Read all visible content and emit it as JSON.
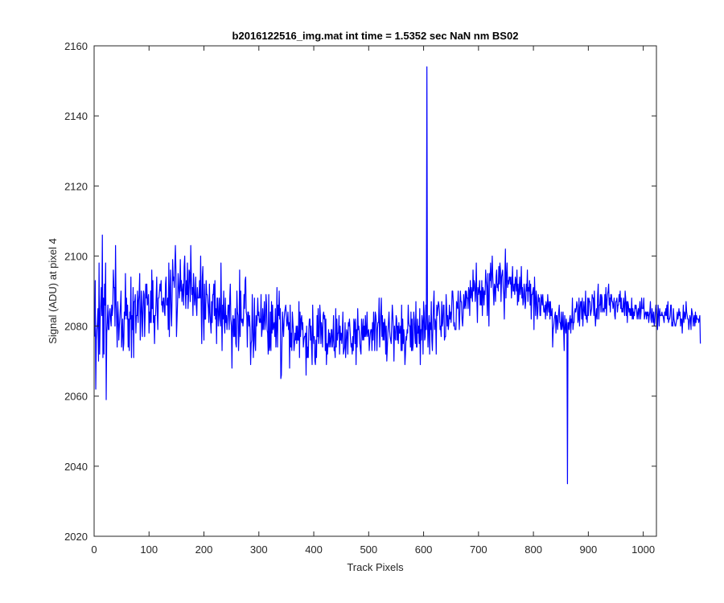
{
  "chart_data": {
    "type": "line",
    "title": "b2016122516_img.mat int time = 1.5352 sec  NaN nm BS02",
    "xlabel": "Track Pixels",
    "ylabel": "Signal (ADU) at pixel 4",
    "xlim": [
      0,
      1024
    ],
    "ylim": [
      2020,
      2160
    ],
    "xticks": [
      0,
      100,
      200,
      300,
      400,
      500,
      600,
      700,
      800,
      900,
      1000
    ],
    "yticks": [
      2020,
      2040,
      2060,
      2080,
      2100,
      2120,
      2140,
      2160
    ],
    "grid": false,
    "line_color": "#0000ff",
    "series": [
      {
        "x_start": 1,
        "x_step": 1,
        "values": [
          2077,
          2093,
          2062,
          2076,
          2079,
          2081,
          2085,
          2070,
          2098,
          2072,
          2082,
          2086,
          2091,
          2083,
          2106,
          2071,
          2088,
          2072,
          2092,
          2086,
          2098,
          2059,
          2078,
          2081,
          2086,
          2079,
          2079,
          2084,
          2085,
          2082,
          2080,
          2086,
          2083,
          2085,
          2096,
          2091,
          2091,
          2080,
          2103,
          2087,
          2082,
          2074,
          2087,
          2083,
          2076,
          2080,
          2083,
          2086,
          2090,
          2074,
          2078,
          2082,
          2073,
          2075,
          2084,
          2082,
          2095,
          2083,
          2088,
          2082,
          2086,
          2074,
          2082,
          2073,
          2084,
          2082,
          2094,
          2071,
          2083,
          2079,
          2091,
          2071,
          2087,
          2087,
          2089,
          2078,
          2083,
          2083,
          2090,
          2081,
          2087,
          2089,
          2095,
          2076,
          2081,
          2090,
          2085,
          2077,
          2084,
          2090,
          2089,
          2077,
          2084,
          2092,
          2088,
          2092,
          2086,
          2087,
          2089,
          2078,
          2084,
          2081,
          2090,
          2081,
          2096,
          2085,
          2093,
          2081,
          2083,
          2075,
          2083,
          2083,
          2088,
          2094,
          2084,
          2079,
          2088,
          2088,
          2090,
          2092,
          2090,
          2093,
          2086,
          2087,
          2084,
          2088,
          2088,
          2084,
          2083,
          2092,
          2094,
          2086,
          2086,
          2088,
          2079,
          2098,
          2077,
          2090,
          2096,
          2085,
          2080,
          2088,
          2099,
          2093,
          2094,
          2091,
          2097,
          2103,
          2096,
          2077,
          2082,
          2087,
          2095,
          2092,
          2088,
          2091,
          2099,
          2090,
          2093,
          2087,
          2090,
          2092,
          2086,
          2097,
          2100,
          2090,
          2085,
          2093,
          2089,
          2098,
          2085,
          2089,
          2096,
          2095,
          2087,
          2103,
          2094,
          2089,
          2091,
          2083,
          2095,
          2091,
          2086,
          2088,
          2094,
          2086,
          2083,
          2091,
          2088,
          2088,
          2088,
          2093,
          2088,
          2100,
          2085,
          2075,
          2094,
          2097,
          2082,
          2076,
          2092,
          2082,
          2082,
          2093,
          2089,
          2089,
          2087,
          2085,
          2081,
          2092,
          2084,
          2081,
          2078,
          2087,
          2081,
          2089,
          2089,
          2092,
          2083,
          2093,
          2082,
          2085,
          2075,
          2088,
          2088,
          2080,
          2083,
          2088,
          2082,
          2080,
          2098,
          2084,
          2073,
          2086,
          2082,
          2090,
          2081,
          2078,
          2088,
          2081,
          2083,
          2079,
          2082,
          2086,
          2086,
          2079,
          2088,
          2092,
          2082,
          2080,
          2068,
          2081,
          2083,
          2077,
          2082,
          2077,
          2085,
          2075,
          2074,
          2090,
          2084,
          2083,
          2073,
          2078,
          2096,
          2077,
          2090,
          2082,
          2081,
          2082,
          2080,
          2082,
          2089,
          2085,
          2093,
          2094,
          2084,
          2083,
          2074,
          2084,
          2084,
          2080,
          2083,
          2079,
          2069,
          2075,
          2076,
          2089,
          2080,
          2071,
          2077,
          2088,
          2075,
          2073,
          2083,
          2080,
          2082,
          2088,
          2083,
          2084,
          2081,
          2082,
          2081,
          2089,
          2077,
          2079,
          2085,
          2079,
          2082,
          2087,
          2079,
          2081,
          2089,
          2086,
          2079,
          2078,
          2072,
          2089,
          2073,
          2074,
          2084,
          2073,
          2087,
          2078,
          2086,
          2079,
          2080,
          2081,
          2077,
          2085,
          2074,
          2079,
          2091,
          2074,
          2086,
          2083,
          2090,
          2082,
          2085,
          2065,
          2066,
          2075,
          2084,
          2080,
          2077,
          2082,
          2084,
          2085,
          2086,
          2083,
          2080,
          2081,
          2084,
          2079,
          2081,
          2068,
          2086,
          2074,
          2078,
          2073,
          2084,
          2081,
          2078,
          2073,
          2075,
          2078,
          2076,
          2080,
          2075,
          2080,
          2076,
          2076,
          2087,
          2071,
          2084,
          2077,
          2082,
          2083,
          2079,
          2081,
          2074,
          2076,
          2077,
          2077,
          2078,
          2066,
          2080,
          2071,
          2074,
          2071,
          2079,
          2082,
          2082,
          2076,
          2080,
          2074,
          2069,
          2086,
          2078,
          2075,
          2077,
          2070,
          2069,
          2076,
          2071,
          2083,
          2077,
          2085,
          2075,
          2077,
          2086,
          2083,
          2075,
          2081,
          2079,
          2074,
          2083,
          2084,
          2082,
          2083,
          2073,
          2082,
          2069,
          2075,
          2072,
          2075,
          2079,
          2074,
          2078,
          2076,
          2074,
          2079,
          2079,
          2074,
          2076,
          2083,
          2073,
          2074,
          2071,
          2085,
          2074,
          2082,
          2076,
          2078,
          2078,
          2083,
          2072,
          2080,
          2076,
          2078,
          2075,
          2078,
          2084,
          2072,
          2073,
          2074,
          2081,
          2071,
          2075,
          2079,
          2078,
          2072,
          2081,
          2080,
          2082,
          2079,
          2076,
          2074,
          2075,
          2072,
          2077,
          2073,
          2082,
          2081,
          2075,
          2082,
          2069,
          2079,
          2074,
          2085,
          2079,
          2080,
          2078,
          2075,
          2073,
          2072,
          2082,
          2079,
          2076,
          2082,
          2076,
          2080,
          2077,
          2083,
          2077,
          2078,
          2084,
          2077,
          2078,
          2079,
          2073,
          2076,
          2078,
          2079,
          2079,
          2073,
          2081,
          2076,
          2084,
          2080,
          2073,
          2084,
          2083,
          2081,
          2073,
          2079,
          2081,
          2081,
          2088,
          2074,
          2079,
          2084,
          2088,
          2077,
          2083,
          2076,
          2081,
          2076,
          2082,
          2080,
          2072,
          2080,
          2070,
          2074,
          2078,
          2081,
          2084,
          2079,
          2077,
          2076,
          2075,
          2081,
          2086,
          2083,
          2079,
          2070,
          2080,
          2077,
          2076,
          2083,
          2082,
          2076,
          2080,
          2075,
          2081,
          2078,
          2078,
          2080,
          2073,
          2086,
          2073,
          2082,
          2075,
          2079,
          2076,
          2069,
          2072,
          2077,
          2076,
          2079,
          2078,
          2086,
          2081,
          2080,
          2080,
          2074,
          2084,
          2073,
          2082,
          2073,
          2075,
          2084,
          2082,
          2078,
          2075,
          2087,
          2074,
          2074,
          2082,
          2078,
          2080,
          2075,
          2085,
          2069,
          2079,
          2076,
          2083,
          2081,
          2072,
          2087,
          2084,
          2076,
          2077,
          2086,
          2079,
          2154,
          2082,
          2074,
          2080,
          2083,
          2072,
          2081,
          2079,
          2087,
          2076,
          2073,
          2080,
          2086,
          2090,
          2079,
          2082,
          2081,
          2072,
          2086,
          2083,
          2085,
          2087,
          2086,
          2084,
          2079,
          2080,
          2077,
          2087,
          2080,
          2081,
          2086,
          2086,
          2076,
          2077,
          2077,
          2089,
          2085,
          2080,
          2083,
          2079,
          2081,
          2086,
          2082,
          2084,
          2081,
          2084,
          2090,
          2090,
          2087,
          2080,
          2081,
          2079,
          2079,
          2079,
          2087,
          2086,
          2085,
          2090,
          2084,
          2079,
          2084,
          2090,
          2087,
          2087,
          2082,
          2080,
          2083,
          2089,
          2085,
          2086,
          2090,
          2085,
          2090,
          2088,
          2088,
          2085,
          2091,
          2090,
          2083,
          2093,
          2088,
          2091,
          2089,
          2087,
          2096,
          2090,
          2093,
          2092,
          2087,
          2090,
          2098,
          2088,
          2081,
          2091,
          2089,
          2090,
          2093,
          2086,
          2090,
          2086,
          2093,
          2083,
          2091,
          2090,
          2086,
          2090,
          2089,
          2096,
          2093,
          2091,
          2083,
          2095,
          2087,
          2080,
          2095,
          2093,
          2098,
          2091,
          2094,
          2100,
          2094,
          2090,
          2086,
          2092,
          2091,
          2087,
          2094,
          2096,
          2091,
          2092,
          2090,
          2097,
          2092,
          2098,
          2096,
          2087,
          2094,
          2095,
          2096,
          2091,
          2089,
          2082,
          2095,
          2102,
          2088,
          2094,
          2098,
          2091,
          2093,
          2092,
          2094,
          2094,
          2092,
          2094,
          2088,
          2092,
          2097,
          2090,
          2090,
          2092,
          2089,
          2094,
          2093,
          2090,
          2096,
          2086,
          2092,
          2087,
          2090,
          2094,
          2089,
          2091,
          2097,
          2088,
          2091,
          2086,
          2087,
          2092,
          2090,
          2085,
          2087,
          2092,
          2090,
          2096,
          2087,
          2091,
          2090,
          2093,
          2086,
          2092,
          2082,
          2089,
          2089,
          2090,
          2091,
          2079,
          2094,
          2088,
          2083,
          2090,
          2088,
          2082,
          2084,
          2089,
          2087,
          2088,
          2083,
          2083,
          2089,
          2088,
          2086,
          2089,
          2086,
          2084,
          2084,
          2086,
          2082,
          2087,
          2086,
          2083,
          2089,
          2086,
          2084,
          2087,
          2082,
          2087,
          2083,
          2083,
          2085,
          2074,
          2079,
          2080,
          2082,
          2083,
          2084,
          2078,
          2083,
          2083,
          2079,
          2081,
          2084,
          2086,
          2081,
          2081,
          2079,
          2084,
          2079,
          2080,
          2084,
          2079,
          2073,
          2083,
          2080,
          2078,
          2082,
          2080,
          2035,
          2081,
          2081,
          2079,
          2082,
          2083,
          2078,
          2082,
          2081,
          2088,
          2079,
          2081,
          2081,
          2084,
          2085,
          2084,
          2085,
          2087,
          2086,
          2081,
          2082,
          2088,
          2080,
          2085,
          2087,
          2087,
          2082,
          2088,
          2080,
          2084,
          2087,
          2084,
          2083,
          2090,
          2082,
          2083,
          2081,
          2088,
          2083,
          2088,
          2087,
          2087,
          2083,
          2084,
          2085,
          2089,
          2088,
          2088,
          2083,
          2090,
          2084,
          2080,
          2083,
          2085,
          2082,
          2089,
          2092,
          2082,
          2086,
          2086,
          2089,
          2084,
          2089,
          2088,
          2084,
          2085,
          2085,
          2084,
          2089,
          2085,
          2091,
          2083,
          2087,
          2089,
          2090,
          2092,
          2086,
          2088,
          2084,
          2089,
          2089,
          2087,
          2087,
          2085,
          2086,
          2088,
          2083,
          2082,
          2087,
          2087,
          2088,
          2084,
          2086,
          2086,
          2089,
          2087,
          2090,
          2085,
          2088,
          2084,
          2085,
          2084,
          2088,
          2086,
          2083,
          2090,
          2088,
          2083,
          2087,
          2081,
          2087,
          2086,
          2084,
          2085,
          2083,
          2085,
          2083,
          2088,
          2082,
          2085,
          2082,
          2084,
          2083,
          2086,
          2085,
          2086,
          2084,
          2082,
          2084,
          2085,
          2082,
          2085,
          2087,
          2082,
          2084,
          2088,
          2085,
          2085,
          2085,
          2088,
          2082,
          2083,
          2084,
          2084,
          2082,
          2084,
          2083,
          2084,
          2081,
          2083,
          2084,
          2087,
          2082,
          2081,
          2085,
          2083,
          2081,
          2084,
          2080,
          2081,
          2084,
          2086,
          2085,
          2083,
          2079,
          2086,
          2084,
          2080,
          2085,
          2083,
          2083,
          2083,
          2084,
          2083,
          2083,
          2082,
          2081,
          2084,
          2083,
          2085,
          2083,
          2086,
          2082,
          2087,
          2081,
          2082,
          2082,
          2083,
          2086,
          2086,
          2080,
          2081,
          2080,
          2085,
          2082,
          2081,
          2080,
          2080,
          2081,
          2082,
          2084,
          2082,
          2083,
          2085,
          2083,
          2084,
          2080,
          2082,
          2082,
          2078,
          2082,
          2086,
          2081,
          2084,
          2083,
          2082,
          2087,
          2084,
          2083,
          2082,
          2082,
          2079,
          2081,
          2083,
          2082,
          2079,
          2085,
          2084,
          2083,
          2080,
          2082,
          2083,
          2080,
          2084,
          2081,
          2083,
          2082,
          2082,
          2082,
          2081,
          2082,
          2083,
          2075
        ]
      }
    ]
  }
}
